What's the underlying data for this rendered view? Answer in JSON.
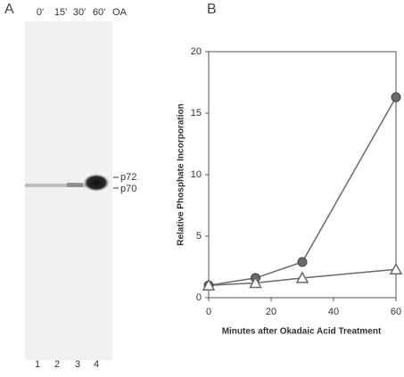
{
  "panel_a": {
    "label": "A",
    "lanes": [
      "0'",
      "15'",
      "30'",
      "60'",
      "OA"
    ],
    "bands": [
      "p72",
      "p70"
    ],
    "lane_numbers": [
      "1",
      "2",
      "3",
      "4"
    ]
  },
  "chart_data": {
    "type": "line",
    "panel_label": "B",
    "x_label": "Minutes after Okadaic Acid Treatment",
    "y_label": "Relative Phosphate Incorporation",
    "x": [
      0,
      15,
      30,
      60
    ],
    "series": [
      {
        "color": "#6a6a6a",
        "marker": "circle",
        "values": [
          1,
          1.6,
          2.9,
          16.3
        ]
      },
      {
        "color": "#6a6a6a",
        "marker": "triangle",
        "values": [
          1,
          1.2,
          1.6,
          2.3
        ]
      }
    ],
    "xlim": [
      0,
      60
    ],
    "ylim": [
      0,
      20
    ],
    "xticks": [
      0,
      20,
      40,
      60
    ],
    "yticks": [
      0,
      5,
      10,
      15,
      20
    ]
  }
}
